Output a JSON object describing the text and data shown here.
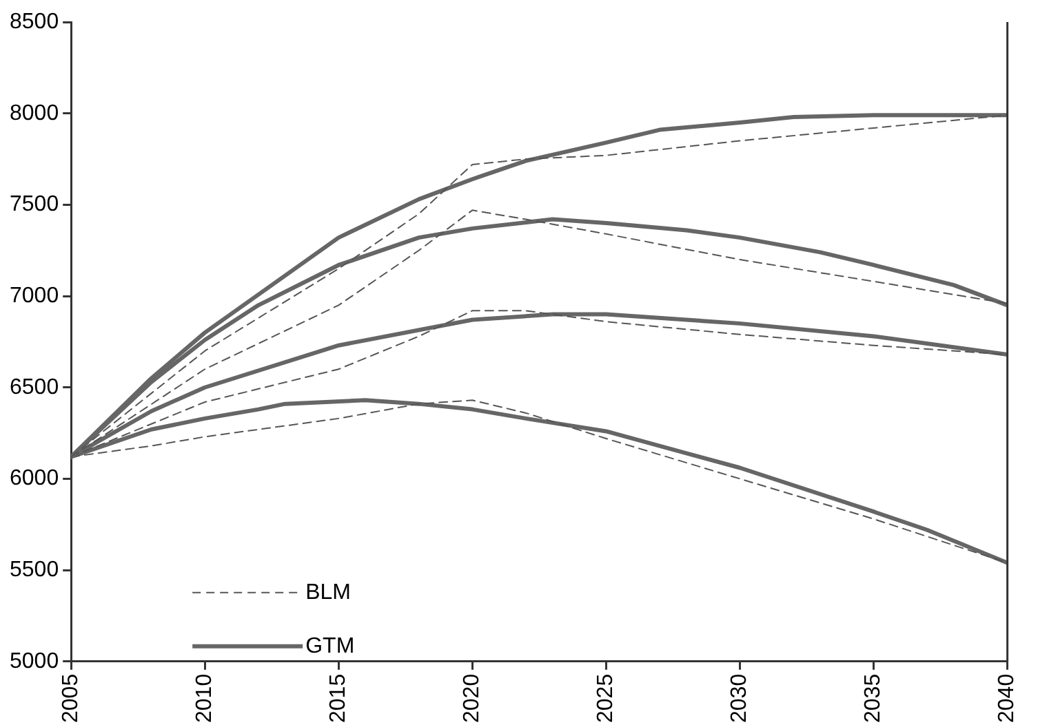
{
  "chart_data": {
    "type": "line",
    "xlim": [
      2005,
      2040
    ],
    "xticks": [
      2005,
      2010,
      2015,
      2020,
      2025,
      2030,
      2035,
      2040
    ],
    "ylim": [
      5000,
      8500
    ],
    "yticks": [
      5000,
      5500,
      6000,
      6500,
      7000,
      7500,
      8000,
      8500
    ],
    "grid": false,
    "legend": "bottom left",
    "marker": "none",
    "series": [
      {
        "name": "BLM",
        "color": "#555555",
        "line_style": "dashed",
        "x": [
          2005,
          2010,
          2015,
          2018,
          2020,
          2022,
          2025,
          2030,
          2035,
          2040
        ],
        "values": [
          6120,
          6700,
          7150,
          7450,
          7720,
          7750,
          7770,
          7850,
          7920,
          7990
        ]
      },
      {
        "name": "GTM",
        "color": "#666666",
        "line_style": "solid",
        "x": [
          2005,
          2008,
          2010,
          2015,
          2018,
          2020,
          2022,
          2025,
          2027,
          2030,
          2032,
          2035,
          2040
        ],
        "values": [
          6120,
          6550,
          6800,
          7320,
          7530,
          7640,
          7740,
          7840,
          7910,
          7950,
          7980,
          7990,
          7990
        ]
      },
      {
        "color": "#555555",
        "line_style": "dashed",
        "x": [
          2005,
          2010,
          2015,
          2018,
          2020,
          2022,
          2025,
          2030,
          2035,
          2040
        ],
        "values": [
          6120,
          6600,
          6950,
          7250,
          7470,
          7420,
          7340,
          7200,
          7080,
          6960
        ]
      },
      {
        "color": "#666666",
        "line_style": "solid",
        "x": [
          2005,
          2008,
          2010,
          2012,
          2015,
          2018,
          2020,
          2023,
          2025,
          2028,
          2030,
          2033,
          2035,
          2038,
          2040
        ],
        "values": [
          6120,
          6530,
          6760,
          6950,
          7170,
          7320,
          7370,
          7420,
          7400,
          7360,
          7320,
          7240,
          7170,
          7060,
          6950
        ]
      },
      {
        "color": "#555555",
        "line_style": "dashed",
        "x": [
          2005,
          2010,
          2015,
          2018,
          2020,
          2022,
          2025,
          2030,
          2035,
          2040
        ],
        "values": [
          6120,
          6420,
          6600,
          6780,
          6920,
          6920,
          6860,
          6790,
          6730,
          6680
        ]
      },
      {
        "color": "#666666",
        "line_style": "solid",
        "x": [
          2005,
          2008,
          2010,
          2015,
          2020,
          2023,
          2025,
          2030,
          2035,
          2040
        ],
        "values": [
          6120,
          6370,
          6500,
          6730,
          6870,
          6900,
          6900,
          6850,
          6780,
          6680
        ]
      },
      {
        "color": "#555555",
        "line_style": "dashed",
        "x": [
          2005,
          2008,
          2010,
          2015,
          2018,
          2020,
          2022,
          2025,
          2030,
          2035,
          2040
        ],
        "values": [
          6120,
          6180,
          6230,
          6330,
          6410,
          6430,
          6360,
          6220,
          6000,
          5780,
          5540
        ]
      },
      {
        "color": "#666666",
        "line_style": "solid",
        "x": [
          2005,
          2008,
          2010,
          2012,
          2013,
          2016,
          2018,
          2020,
          2022,
          2025,
          2028,
          2030,
          2035,
          2037,
          2040
        ],
        "values": [
          6120,
          6270,
          6330,
          6380,
          6410,
          6430,
          6410,
          6380,
          6330,
          6260,
          6140,
          6060,
          5820,
          5720,
          5540
        ]
      }
    ]
  }
}
